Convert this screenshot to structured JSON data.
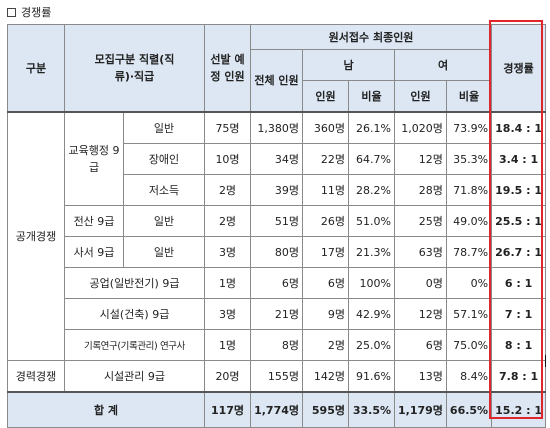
{
  "caption": {
    "label": "경쟁률"
  },
  "headers": {
    "category": "구분",
    "recruit": "모집구분 직렬(직류)·직급",
    "planned": "선발 예정 인원",
    "applicants": "원서접수 최종인원",
    "total": "전체 인원",
    "male": "남",
    "female": "여",
    "count": "인원",
    "ratio": "비율",
    "competition": "경쟁률"
  },
  "groups": {
    "open": "공개경쟁",
    "career": "경력경쟁",
    "edu": "교육행정 9급",
    "comp": "전산 9급",
    "lib": "사서 9급"
  },
  "rows": [
    {
      "sub": "일반",
      "planned": "75명",
      "total": "1,380명",
      "m": "360명",
      "mr": "26.1%",
      "f": "1,020명",
      "fr": "73.9%",
      "comp": "18.4 : 1"
    },
    {
      "sub": "장애인",
      "planned": "10명",
      "total": "34명",
      "m": "22명",
      "mr": "64.7%",
      "f": "12명",
      "fr": "35.3%",
      "comp": "3.4 : 1"
    },
    {
      "sub": "저소득",
      "planned": "2명",
      "total": "39명",
      "m": "11명",
      "mr": "28.2%",
      "f": "28명",
      "fr": "71.8%",
      "comp": "19.5 : 1"
    },
    {
      "sub": "일반",
      "planned": "2명",
      "total": "51명",
      "m": "26명",
      "mr": "51.0%",
      "f": "25명",
      "fr": "49.0%",
      "comp": "25.5 : 1"
    },
    {
      "sub": "일반",
      "planned": "3명",
      "total": "80명",
      "m": "17명",
      "mr": "21.3%",
      "f": "63명",
      "fr": "78.7%",
      "comp": "26.7 : 1"
    },
    {
      "sub": "공업(일반전기) 9급",
      "planned": "1명",
      "total": "6명",
      "m": "6명",
      "mr": "100%",
      "f": "0명",
      "fr": "0%",
      "comp": "6 : 1"
    },
    {
      "sub": "시설(건축) 9급",
      "planned": "3명",
      "total": "21명",
      "m": "9명",
      "mr": "42.9%",
      "f": "12명",
      "fr": "57.1%",
      "comp": "7 : 1"
    },
    {
      "sub": "기록연구(기록관리) 연구사",
      "planned": "1명",
      "total": "8명",
      "m": "2명",
      "mr": "25.0%",
      "f": "6명",
      "fr": "75.0%",
      "comp": "8 : 1"
    },
    {
      "sub": "시설관리 9급",
      "planned": "20명",
      "total": "155명",
      "m": "142명",
      "mr": "91.6%",
      "f": "13명",
      "fr": "8.4%",
      "comp": "7.8 : 1"
    }
  ],
  "totals": {
    "label": "합 계",
    "planned": "117명",
    "total": "1,774명",
    "m": "595명",
    "mr": "33.5%",
    "f": "1,179명",
    "fr": "66.5%",
    "comp": "15.2 : 1"
  }
}
